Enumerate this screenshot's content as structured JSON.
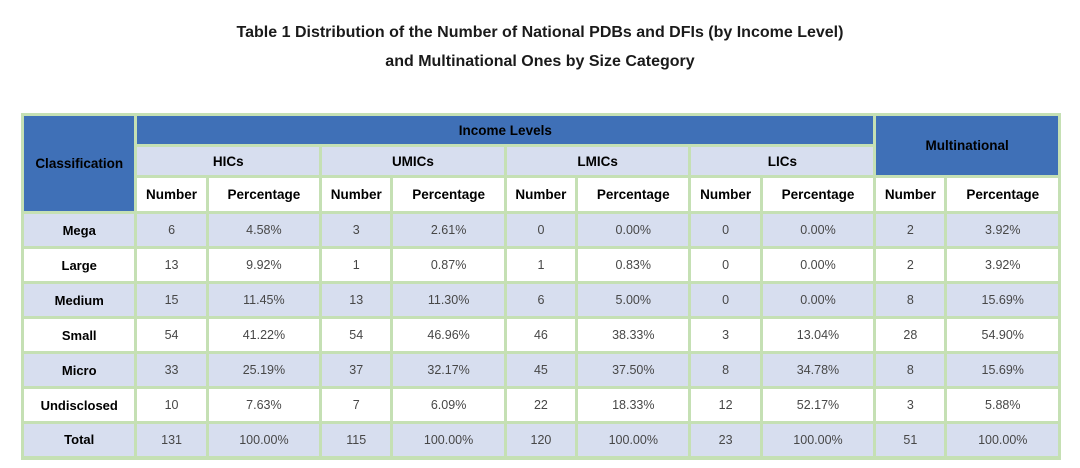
{
  "caption": {
    "line1": "Table 1 Distribution of the Number of National PDBs and DFIs (by Income Level)",
    "line2": "and Multinational Ones by Size Category"
  },
  "table": {
    "corner_label": "Classification",
    "income_levels_label": "Income Levels",
    "multinational_label": "Multinational",
    "groups": [
      "HICs",
      "UMICs",
      "LMICs",
      "LICs"
    ],
    "subheaders": {
      "number": "Number",
      "percentage": "Percentage"
    },
    "rows": [
      {
        "label": "Mega",
        "values": [
          "6",
          "4.58%",
          "3",
          "2.61%",
          "0",
          "0.00%",
          "0",
          "0.00%",
          "2",
          "3.92%"
        ]
      },
      {
        "label": "Large",
        "values": [
          "13",
          "9.92%",
          "1",
          "0.87%",
          "1",
          "0.83%",
          "0",
          "0.00%",
          "2",
          "3.92%"
        ]
      },
      {
        "label": "Medium",
        "values": [
          "15",
          "11.45%",
          "13",
          "11.30%",
          "6",
          "5.00%",
          "0",
          "0.00%",
          "8",
          "15.69%"
        ]
      },
      {
        "label": "Small",
        "values": [
          "54",
          "41.22%",
          "54",
          "46.96%",
          "46",
          "38.33%",
          "3",
          "13.04%",
          "28",
          "54.90%"
        ]
      },
      {
        "label": "Micro",
        "values": [
          "33",
          "25.19%",
          "37",
          "32.17%",
          "45",
          "37.50%",
          "8",
          "34.78%",
          "8",
          "15.69%"
        ]
      },
      {
        "label": "Undisclosed",
        "values": [
          "10",
          "7.63%",
          "7",
          "6.09%",
          "22",
          "18.33%",
          "12",
          "52.17%",
          "3",
          "5.88%"
        ]
      },
      {
        "label": "Total",
        "values": [
          "131",
          "100.00%",
          "115",
          "100.00%",
          "120",
          "100.00%",
          "23",
          "100.00%",
          "51",
          "100.00%"
        ]
      }
    ]
  },
  "colors": {
    "header_blue": "#3f70b7",
    "row_stripe_lavender": "#d7deef",
    "border_green": "#c5e0b4",
    "background": "#ffffff",
    "header_text": "#000000",
    "data_text": "#474747"
  }
}
